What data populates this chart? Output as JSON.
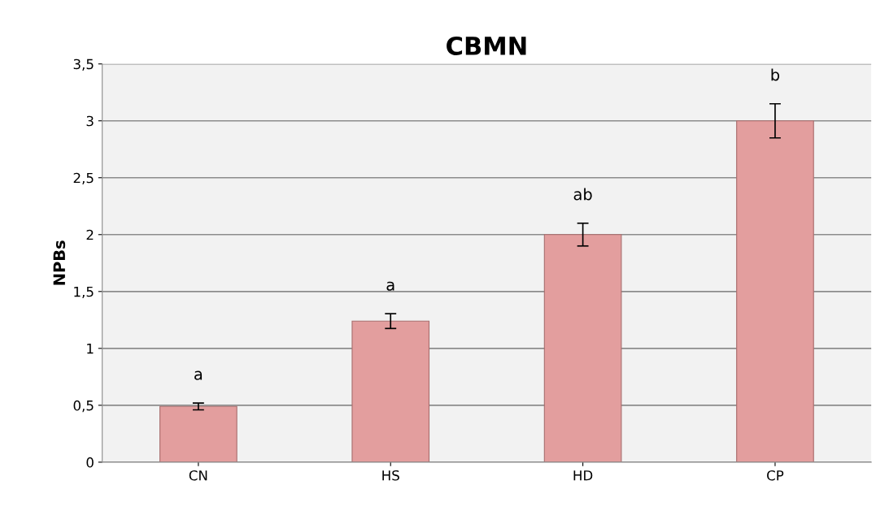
{
  "chart_data": {
    "type": "bar",
    "title": "CBMN",
    "ylabel": "NPBs",
    "categories": [
      "CN",
      "HS",
      "HD",
      "CP"
    ],
    "values": [
      0.49,
      1.24,
      2.0,
      3.0
    ],
    "errors": [
      0.03,
      0.065,
      0.1,
      0.15
    ],
    "color": "#e39e9e",
    "ylim": [
      0,
      3.5
    ],
    "yticks": [
      {
        "value": 0,
        "label": "0"
      },
      {
        "value": 0.5,
        "label": "0,5"
      },
      {
        "value": 1,
        "label": "1"
      },
      {
        "value": 1.5,
        "label": "1,5"
      },
      {
        "value": 2,
        "label": "2"
      },
      {
        "value": 2.5,
        "label": "2,5"
      },
      {
        "value": 3,
        "label": "3"
      },
      {
        "value": 3.5,
        "label": "3,5"
      }
    ],
    "grid": "y",
    "annotations": [
      "a",
      "a",
      "ab",
      "b"
    ]
  }
}
